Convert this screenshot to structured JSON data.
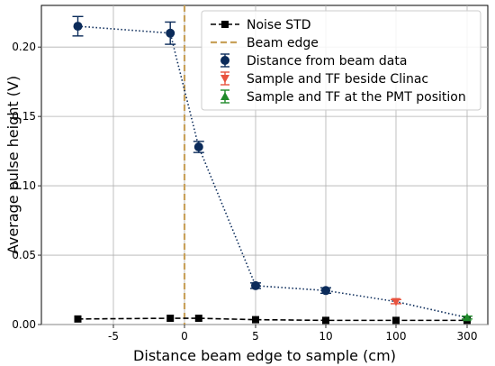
{
  "chart_data": {
    "type": "line",
    "xlabel": "Distance beam edge to sample (cm)",
    "ylabel": "Average pulse height (V)",
    "x_scale": "categorical-position",
    "x_ticks": [
      "-5",
      "0",
      "5",
      "10",
      "100",
      "300"
    ],
    "x_tick_positions": [
      -5,
      0,
      5,
      10,
      100,
      300
    ],
    "ylim": [
      0,
      0.23
    ],
    "y_ticks": [
      "0.00",
      "0.05",
      "0.10",
      "0.15",
      "0.20"
    ],
    "y_tick_values": [
      0.0,
      0.05,
      0.1,
      0.15,
      0.2
    ],
    "grid": true,
    "legend_position": "top-right",
    "beam_edge_x": 0,
    "series": [
      {
        "name": "Noise STD",
        "style": "dashed-square",
        "color": "#000000",
        "x": [
          -7.5,
          -1,
          1,
          5,
          10,
          100,
          300
        ],
        "y": [
          0.004,
          0.0045,
          0.0045,
          0.0035,
          0.003,
          0.003,
          0.003
        ]
      },
      {
        "name": "Beam edge",
        "style": "vertical-dashed",
        "color": "#c8a15a"
      },
      {
        "name": "Distance from beam data",
        "style": "dotted-circle-errorbar",
        "color": "#0b2b5a",
        "x": [
          -7.5,
          -1,
          1,
          5,
          10
        ],
        "y": [
          0.215,
          0.21,
          0.128,
          0.028,
          0.0245
        ],
        "err": [
          0.007,
          0.008,
          0.004,
          0.002,
          0.002
        ]
      },
      {
        "name": "Sample and TF beside Clinac",
        "style": "triangle-down-errorbar",
        "color": "#e8533f",
        "x": [
          100
        ],
        "y": [
          0.0165
        ],
        "err": [
          0.0015
        ]
      },
      {
        "name": "Sample and TF at the PMT position",
        "style": "triangle-up-errorbar",
        "color": "#1f8a2a",
        "x": [
          300
        ],
        "y": [
          0.005
        ],
        "err": [
          0.001
        ]
      }
    ],
    "dotted_connector_note_free": true
  }
}
